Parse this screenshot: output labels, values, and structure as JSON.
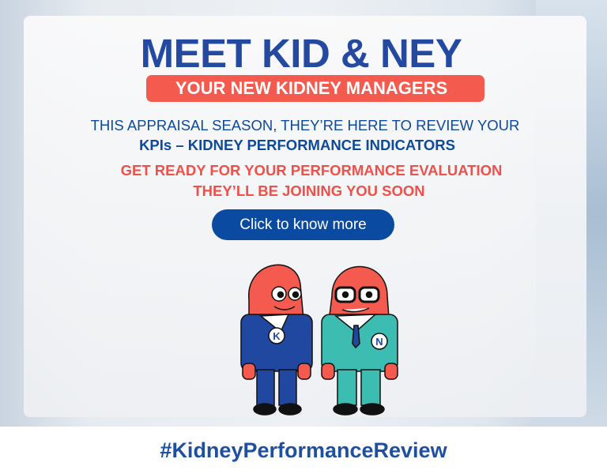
{
  "banner": {
    "title": "MEET KID & NEY",
    "subtitle": "YOUR NEW KIDNEY MANAGERS",
    "line1": "THIS APPRAISAL SEASON, THEY’RE HERE TO REVIEW YOUR",
    "line2": "KPIs – KIDNEY PERFORMANCE INDICATORS",
    "red_line1": "GET READY FOR YOUR PERFORMANCE EVALUATION",
    "red_line2": "THEY’LL BE JOINING YOU SOON",
    "cta_label": "Click to know more",
    "characters": [
      {
        "badge": "K",
        "suit": "#2148a0"
      },
      {
        "badge": "N",
        "suit": "#3dbdb2"
      }
    ]
  },
  "footer": {
    "hashtag": "#KidneyPerformanceReview"
  },
  "colors": {
    "blue": "#2349a0",
    "red": "#f55a4e",
    "button": "#0a4aa0"
  }
}
